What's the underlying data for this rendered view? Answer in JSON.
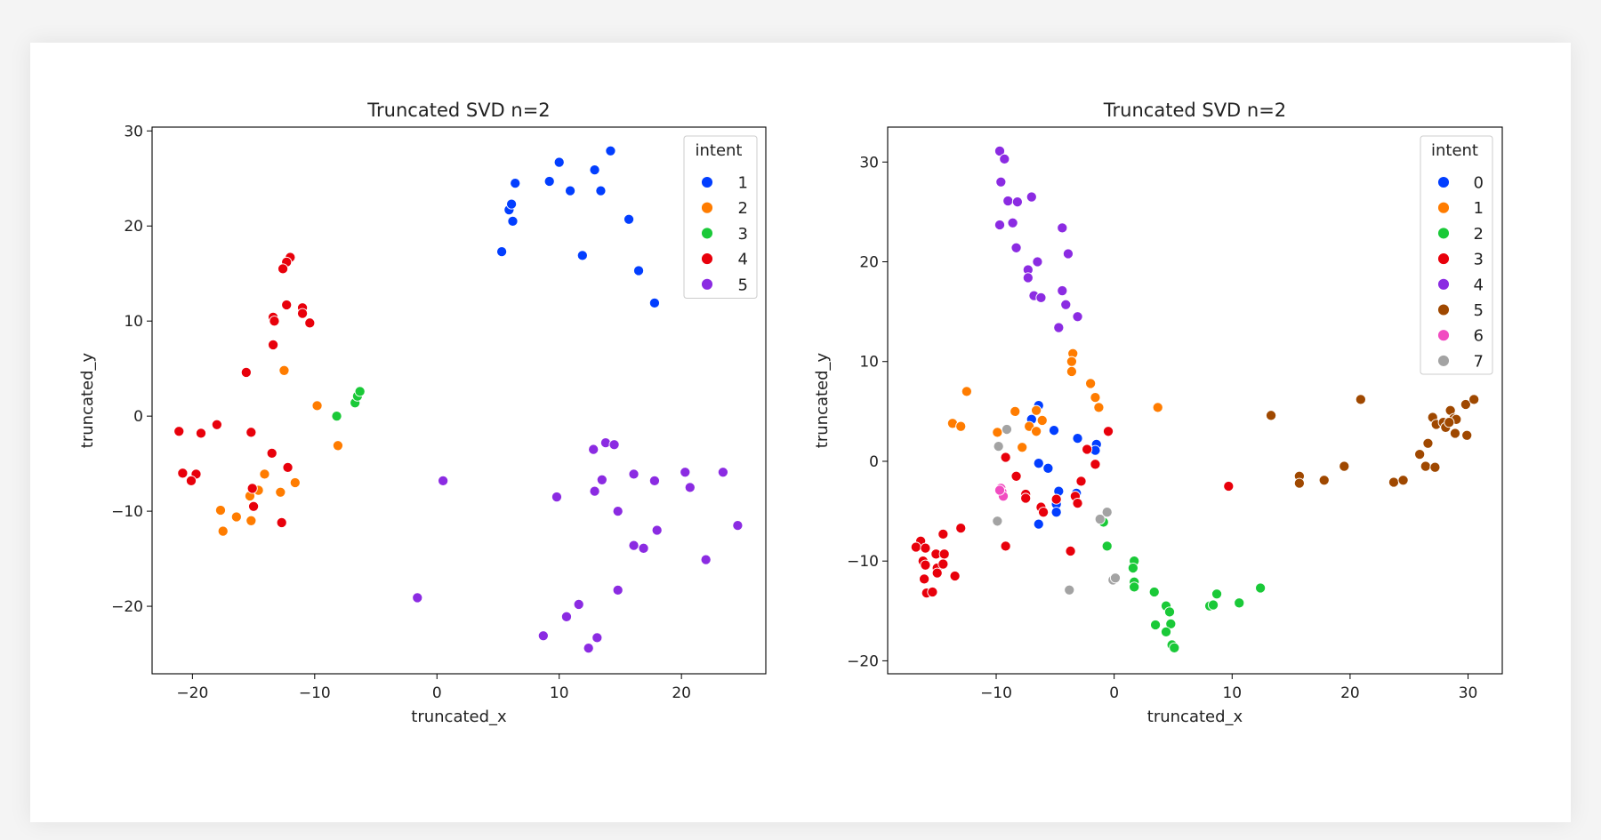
{
  "chart_data": [
    {
      "type": "scatter",
      "title": "Truncated SVD n=2",
      "xlabel": "truncated_x",
      "ylabel": "truncated_y",
      "xlim": [
        -23.3,
        26.9
      ],
      "ylim": [
        -27.1,
        30.4
      ],
      "xticks": [
        -20,
        -10,
        0,
        10,
        20
      ],
      "yticks": [
        -20,
        -10,
        0,
        10,
        20,
        30
      ],
      "grid": false,
      "legend_title": "intent",
      "legend_position": "upper-right",
      "series": [
        {
          "name": "1",
          "color": "#023eff",
          "points": [
            [
              5.3,
              17.3
            ],
            [
              5.9,
              21.7
            ],
            [
              6.1,
              22.3
            ],
            [
              6.2,
              20.5
            ],
            [
              6.4,
              24.5
            ],
            [
              9.2,
              24.7
            ],
            [
              10.0,
              26.7
            ],
            [
              10.9,
              23.7
            ],
            [
              11.9,
              16.9
            ],
            [
              12.9,
              25.9
            ],
            [
              13.4,
              23.7
            ],
            [
              14.2,
              27.9
            ],
            [
              15.7,
              20.7
            ],
            [
              16.5,
              15.3
            ],
            [
              17.8,
              11.9
            ]
          ]
        },
        {
          "name": "2",
          "color": "#ff7c00",
          "points": [
            [
              -12.5,
              4.8
            ],
            [
              -9.8,
              1.1
            ],
            [
              -8.1,
              -3.1
            ],
            [
              -14.1,
              -6.1
            ],
            [
              -11.6,
              -7.0
            ],
            [
              -15.3,
              -8.4
            ],
            [
              -14.6,
              -7.8
            ],
            [
              -12.8,
              -8.0
            ],
            [
              -17.7,
              -9.9
            ],
            [
              -16.4,
              -10.6
            ],
            [
              -15.2,
              -11.0
            ],
            [
              -17.5,
              -12.1
            ]
          ]
        },
        {
          "name": "3",
          "color": "#1ac938",
          "points": [
            [
              -8.2,
              0.0
            ],
            [
              -6.7,
              1.4
            ],
            [
              -6.5,
              2.1
            ],
            [
              -6.3,
              2.6
            ]
          ]
        },
        {
          "name": "4",
          "color": "#e8000b",
          "points": [
            [
              -12.0,
              16.7
            ],
            [
              -12.3,
              16.2
            ],
            [
              -12.6,
              15.5
            ],
            [
              -12.3,
              11.7
            ],
            [
              -11.0,
              11.4
            ],
            [
              -11.0,
              10.8
            ],
            [
              -10.4,
              9.8
            ],
            [
              -13.4,
              10.4
            ],
            [
              -13.3,
              10.0
            ],
            [
              -13.4,
              7.5
            ],
            [
              -15.6,
              4.6
            ],
            [
              -21.1,
              -1.6
            ],
            [
              -19.3,
              -1.8
            ],
            [
              -18.0,
              -0.9
            ],
            [
              -15.2,
              -1.7
            ],
            [
              -13.5,
              -3.9
            ],
            [
              -12.2,
              -5.4
            ],
            [
              -20.8,
              -6.0
            ],
            [
              -19.7,
              -6.1
            ],
            [
              -20.1,
              -6.8
            ],
            [
              -15.1,
              -7.6
            ],
            [
              -15.0,
              -9.5
            ],
            [
              -12.7,
              -11.2
            ]
          ]
        },
        {
          "name": "5",
          "color": "#8b2be2",
          "points": [
            [
              0.5,
              -6.8
            ],
            [
              -1.6,
              -19.1
            ],
            [
              9.8,
              -8.5
            ],
            [
              12.8,
              -3.5
            ],
            [
              13.8,
              -2.8
            ],
            [
              14.5,
              -3.0
            ],
            [
              13.5,
              -6.7
            ],
            [
              12.9,
              -7.9
            ],
            [
              14.8,
              -10.0
            ],
            [
              16.1,
              -6.1
            ],
            [
              17.8,
              -6.8
            ],
            [
              20.3,
              -5.9
            ],
            [
              20.7,
              -7.5
            ],
            [
              23.4,
              -5.9
            ],
            [
              24.6,
              -11.5
            ],
            [
              18.0,
              -12.0
            ],
            [
              16.1,
              -13.6
            ],
            [
              16.9,
              -13.9
            ],
            [
              22.0,
              -15.1
            ],
            [
              14.8,
              -18.3
            ],
            [
              11.6,
              -19.8
            ],
            [
              10.6,
              -21.1
            ],
            [
              8.7,
              -23.1
            ],
            [
              13.1,
              -23.3
            ],
            [
              12.4,
              -24.4
            ]
          ]
        }
      ]
    },
    {
      "type": "scatter",
      "title": "Truncated SVD n=2",
      "xlabel": "truncated_x",
      "ylabel": "truncated_y",
      "xlim": [
        -19.2,
        32.9
      ],
      "ylim": [
        -21.3,
        33.5
      ],
      "xticks": [
        -10,
        0,
        10,
        20,
        30
      ],
      "yticks": [
        -20,
        -10,
        0,
        10,
        20,
        30
      ],
      "grid": false,
      "legend_title": "intent",
      "legend_position": "upper-right",
      "series": [
        {
          "name": "0",
          "color": "#023eff",
          "points": [
            [
              -6.4,
              5.6
            ],
            [
              -7.0,
              4.2
            ],
            [
              -5.1,
              3.1
            ],
            [
              -3.1,
              2.3
            ],
            [
              -1.5,
              1.7
            ],
            [
              -1.6,
              1.1
            ],
            [
              -6.4,
              -0.2
            ],
            [
              -5.6,
              -0.7
            ],
            [
              -4.7,
              -3.0
            ],
            [
              -4.9,
              -4.3
            ],
            [
              -4.9,
              -5.1
            ],
            [
              -3.2,
              -3.2
            ],
            [
              -6.4,
              -6.3
            ]
          ]
        },
        {
          "name": "1",
          "color": "#ff7c00",
          "points": [
            [
              -3.5,
              10.8
            ],
            [
              -3.6,
              10.0
            ],
            [
              -3.6,
              9.0
            ],
            [
              -2.0,
              7.8
            ],
            [
              -1.6,
              6.4
            ],
            [
              -1.3,
              5.4
            ],
            [
              3.7,
              5.4
            ],
            [
              -12.5,
              7.0
            ],
            [
              -13.7,
              3.8
            ],
            [
              -13.0,
              3.5
            ],
            [
              -9.9,
              2.9
            ],
            [
              -8.4,
              5.0
            ],
            [
              -6.6,
              5.1
            ],
            [
              -7.2,
              3.5
            ],
            [
              -6.6,
              3.0
            ],
            [
              -6.1,
              4.1
            ],
            [
              -7.8,
              1.4
            ]
          ]
        },
        {
          "name": "2",
          "color": "#1ac938",
          "points": [
            [
              -0.9,
              -6.1
            ],
            [
              -0.6,
              -8.5
            ],
            [
              1.7,
              -10.0
            ],
            [
              1.6,
              -10.7
            ],
            [
              1.7,
              -12.1
            ],
            [
              1.7,
              -12.6
            ],
            [
              3.4,
              -13.1
            ],
            [
              3.5,
              -16.4
            ],
            [
              4.4,
              -14.5
            ],
            [
              4.7,
              -15.1
            ],
            [
              4.8,
              -16.3
            ],
            [
              4.4,
              -17.1
            ],
            [
              4.9,
              -18.4
            ],
            [
              5.1,
              -18.7
            ],
            [
              8.1,
              -14.5
            ],
            [
              8.4,
              -14.4
            ],
            [
              8.7,
              -13.3
            ],
            [
              10.6,
              -14.2
            ],
            [
              12.4,
              -12.7
            ]
          ]
        },
        {
          "name": "3",
          "color": "#e8000b",
          "points": [
            [
              -0.5,
              3.0
            ],
            [
              -2.3,
              1.2
            ],
            [
              -1.6,
              -0.3
            ],
            [
              -9.2,
              0.4
            ],
            [
              -8.3,
              -1.5
            ],
            [
              -2.8,
              -2.0
            ],
            [
              -7.5,
              -3.3
            ],
            [
              -7.5,
              -3.7
            ],
            [
              -6.2,
              -4.6
            ],
            [
              -6.0,
              -5.1
            ],
            [
              -4.9,
              -3.8
            ],
            [
              -3.3,
              -3.5
            ],
            [
              -3.1,
              -4.2
            ],
            [
              -3.7,
              -9.0
            ],
            [
              -9.2,
              -8.5
            ],
            [
              -13.0,
              -6.7
            ],
            [
              9.7,
              -2.5
            ],
            [
              -14.5,
              -7.3
            ],
            [
              -16.4,
              -8.0
            ],
            [
              -16.8,
              -8.6
            ],
            [
              -16.0,
              -8.7
            ],
            [
              -16.2,
              -10.0
            ],
            [
              -16.0,
              -10.4
            ],
            [
              -15.1,
              -9.3
            ],
            [
              -14.4,
              -9.3
            ],
            [
              -15.0,
              -10.7
            ],
            [
              -14.5,
              -10.3
            ],
            [
              -15.0,
              -11.2
            ],
            [
              -16.1,
              -11.8
            ],
            [
              -13.5,
              -11.5
            ],
            [
              -15.9,
              -13.2
            ],
            [
              -15.4,
              -13.1
            ]
          ]
        },
        {
          "name": "4",
          "color": "#8b2be2",
          "points": [
            [
              -9.7,
              31.1
            ],
            [
              -9.3,
              30.3
            ],
            [
              -9.6,
              28.0
            ],
            [
              -9.0,
              26.1
            ],
            [
              -8.2,
              26.0
            ],
            [
              -7.0,
              26.5
            ],
            [
              -9.7,
              23.7
            ],
            [
              -8.6,
              23.9
            ],
            [
              -4.4,
              23.4
            ],
            [
              -3.9,
              20.8
            ],
            [
              -8.3,
              21.4
            ],
            [
              -7.3,
              19.2
            ],
            [
              -7.3,
              18.4
            ],
            [
              -6.5,
              20.0
            ],
            [
              -6.8,
              16.6
            ],
            [
              -6.2,
              16.4
            ],
            [
              -4.4,
              17.1
            ],
            [
              -4.1,
              15.7
            ],
            [
              -3.1,
              14.5
            ],
            [
              -4.7,
              13.4
            ]
          ]
        },
        {
          "name": "5",
          "color": "#9f4800",
          "points": [
            [
              13.3,
              4.6
            ],
            [
              15.7,
              -1.5
            ],
            [
              15.7,
              -2.2
            ],
            [
              17.8,
              -1.9
            ],
            [
              19.5,
              -0.5
            ],
            [
              20.9,
              6.2
            ],
            [
              23.7,
              -2.1
            ],
            [
              24.5,
              -1.9
            ],
            [
              25.9,
              0.7
            ],
            [
              26.4,
              -0.5
            ],
            [
              26.6,
              1.8
            ],
            [
              27.2,
              -0.6
            ],
            [
              27.0,
              4.4
            ],
            [
              27.3,
              3.7
            ],
            [
              27.9,
              3.9
            ],
            [
              28.1,
              3.4
            ],
            [
              28.5,
              5.1
            ],
            [
              28.8,
              4.3
            ],
            [
              29.0,
              4.2
            ],
            [
              28.9,
              2.8
            ],
            [
              29.9,
              2.6
            ],
            [
              29.8,
              5.7
            ],
            [
              30.5,
              6.2
            ],
            [
              28.4,
              3.9
            ]
          ]
        },
        {
          "name": "6",
          "color": "#f14cc1",
          "points": [
            [
              -9.6,
              -2.7
            ],
            [
              -9.5,
              -3.1
            ],
            [
              -9.4,
              -3.5
            ],
            [
              -9.7,
              -2.9
            ]
          ]
        },
        {
          "name": "7",
          "color": "#a3a3a3",
          "points": [
            [
              -9.1,
              3.2
            ],
            [
              -9.8,
              1.5
            ],
            [
              -9.9,
              -6.0
            ],
            [
              -0.6,
              -5.1
            ],
            [
              -1.2,
              -5.8
            ],
            [
              -0.1,
              -11.9
            ],
            [
              0.1,
              -11.7
            ],
            [
              -3.8,
              -12.9
            ]
          ]
        }
      ]
    }
  ]
}
